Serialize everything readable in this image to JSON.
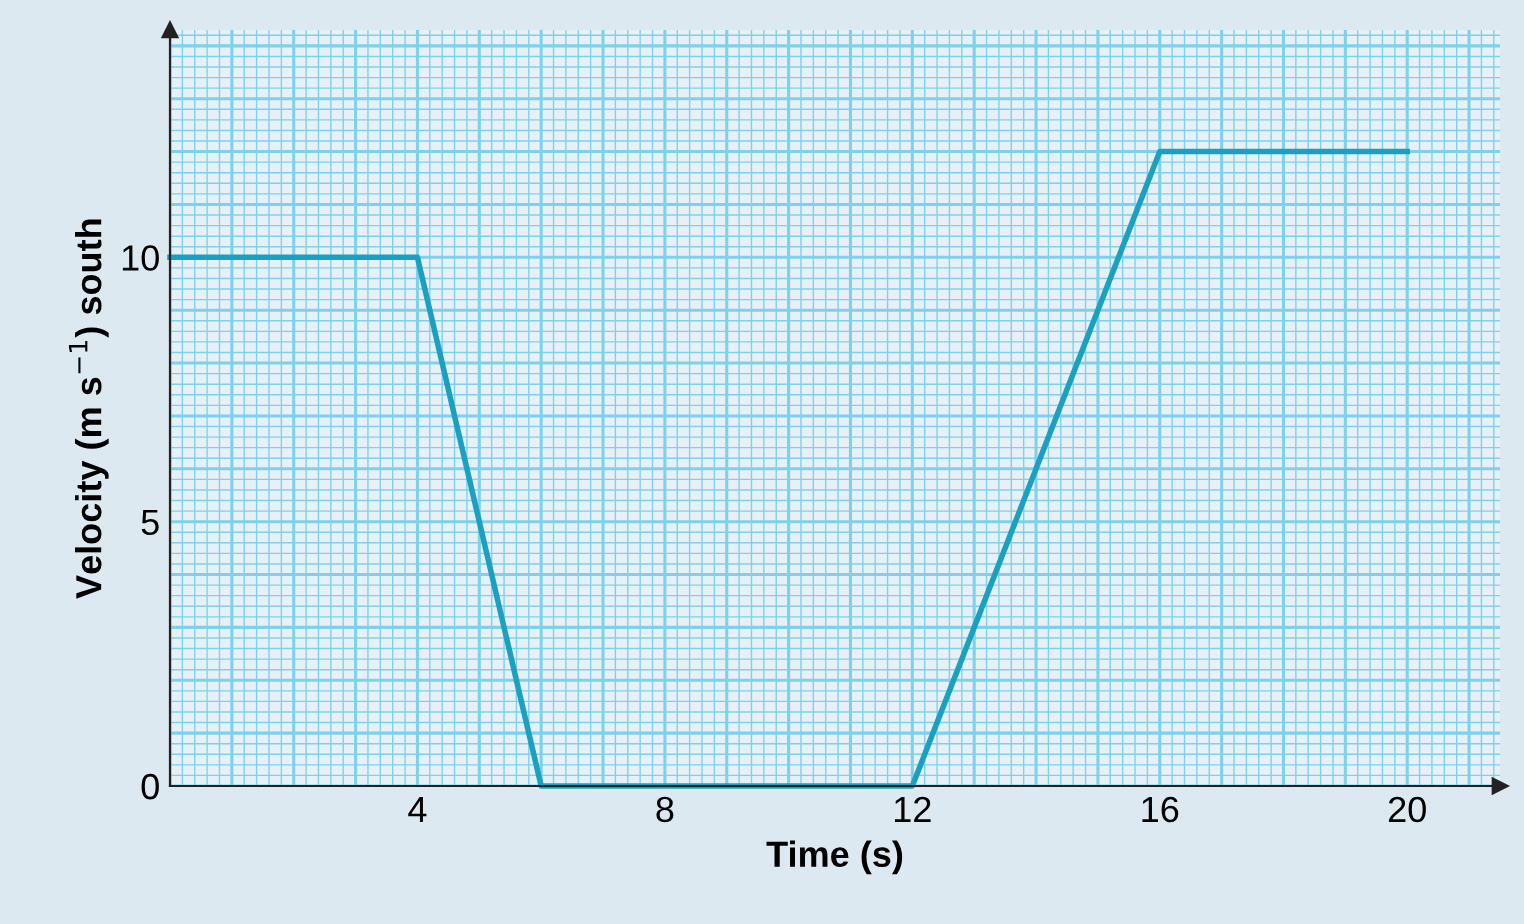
{
  "chart_data": {
    "type": "line",
    "xlabel": "Time (s)",
    "ylabel": "Velocity (m s$^{−1}$) south",
    "x": [
      0,
      4,
      6,
      12,
      16,
      20
    ],
    "series": [
      {
        "color": "#1ba1bf",
        "values": [
          10,
          10,
          0,
          0,
          12,
          12
        ]
      }
    ],
    "xlim": [
      0,
      21.5
    ],
    "ylim": [
      0,
      14.3
    ],
    "xticks": [
      {
        "value": 0,
        "label": null
      },
      {
        "value": 0.2,
        "label": null
      },
      {
        "value": 0.4,
        "label": null
      },
      {
        "value": 0.6,
        "label": null
      },
      {
        "value": 0.8,
        "label": null
      },
      {
        "value": 1,
        "label": null
      },
      {
        "value": 1.2,
        "label": null
      },
      {
        "value": 1.4,
        "label": null
      },
      {
        "value": 1.6,
        "label": null
      },
      {
        "value": 1.8,
        "label": null
      },
      {
        "value": 2,
        "label": null
      },
      {
        "value": 2.2,
        "label": null
      },
      {
        "value": 2.4,
        "label": null
      },
      {
        "value": 2.6,
        "label": null
      },
      {
        "value": 2.8,
        "label": null
      },
      {
        "value": 3,
        "label": null
      },
      {
        "value": 3.2,
        "label": null
      },
      {
        "value": 3.4,
        "label": null
      },
      {
        "value": 3.6,
        "label": null
      },
      {
        "value": 3.8,
        "label": null
      },
      4,
      {
        "value": 4.2,
        "label": null
      },
      {
        "value": 4.4,
        "label": null
      },
      {
        "value": 4.6,
        "label": null
      },
      {
        "value": 4.8,
        "label": null
      },
      {
        "value": 5,
        "label": null
      },
      {
        "value": 5.2,
        "label": null
      },
      {
        "value": 5.4,
        "label": null
      },
      {
        "value": 5.6,
        "label": null
      },
      {
        "value": 5.8,
        "label": null
      },
      {
        "value": 6,
        "label": null
      },
      {
        "value": 6.2,
        "label": null
      },
      {
        "value": 6.4,
        "label": null
      },
      {
        "value": 6.6,
        "label": null
      },
      {
        "value": 6.8,
        "label": null
      },
      {
        "value": 7,
        "label": null
      },
      {
        "value": 7.2,
        "label": null
      },
      {
        "value": 7.4,
        "label": null
      },
      {
        "value": 7.6,
        "label": null
      },
      {
        "value": 7.8,
        "label": null
      },
      8,
      {
        "value": 8.2,
        "label": null
      },
      {
        "value": 8.4,
        "label": null
      },
      {
        "value": 8.6,
        "label": null
      },
      {
        "value": 8.8,
        "label": null
      },
      {
        "value": 9,
        "label": null
      },
      {
        "value": 9.2,
        "label": null
      },
      {
        "value": 9.4,
        "label": null
      },
      {
        "value": 9.6,
        "label": null
      },
      {
        "value": 9.8,
        "label": null
      },
      {
        "value": 10,
        "label": null
      },
      {
        "value": 10.2,
        "label": null
      },
      {
        "value": 10.4,
        "label": null
      },
      {
        "value": 10.6,
        "label": null
      },
      {
        "value": 10.8,
        "label": null
      },
      {
        "value": 11,
        "label": null
      },
      {
        "value": 11.2,
        "label": null
      },
      {
        "value": 11.4,
        "label": null
      },
      {
        "value": 11.6,
        "label": null
      },
      {
        "value": 11.8,
        "label": null
      },
      12,
      {
        "value": 12.2,
        "label": null
      },
      {
        "value": 12.4,
        "label": null
      },
      {
        "value": 12.6,
        "label": null
      },
      {
        "value": 12.8,
        "label": null
      },
      {
        "value": 13,
        "label": null
      },
      {
        "value": 13.2,
        "label": null
      },
      {
        "value": 13.4,
        "label": null
      },
      {
        "value": 13.6,
        "label": null
      },
      {
        "value": 13.8,
        "label": null
      },
      {
        "value": 14,
        "label": null
      },
      {
        "value": 14.2,
        "label": null
      },
      {
        "value": 14.4,
        "label": null
      },
      {
        "value": 14.6,
        "label": null
      },
      {
        "value": 14.8,
        "label": null
      },
      {
        "value": 15,
        "label": null
      },
      {
        "value": 15.2,
        "label": null
      },
      {
        "value": 15.4,
        "label": null
      },
      {
        "value": 15.6,
        "label": null
      },
      {
        "value": 15.8,
        "label": null
      },
      16,
      {
        "value": 16.2,
        "label": null
      },
      {
        "value": 16.4,
        "label": null
      },
      {
        "value": 16.6,
        "label": null
      },
      {
        "value": 16.8,
        "label": null
      },
      {
        "value": 17,
        "label": null
      },
      {
        "value": 17.2,
        "label": null
      },
      {
        "value": 17.4,
        "label": null
      },
      {
        "value": 17.6,
        "label": null
      },
      {
        "value": 17.8,
        "label": null
      },
      {
        "value": 18,
        "label": null
      },
      {
        "value": 18.2,
        "label": null
      },
      {
        "value": 18.4,
        "label": null
      },
      {
        "value": 18.6,
        "label": null
      },
      {
        "value": 18.8,
        "label": null
      },
      {
        "value": 19,
        "label": null
      },
      {
        "value": 19.2,
        "label": null
      },
      {
        "value": 19.4,
        "label": null
      },
      {
        "value": 19.6,
        "label": null
      },
      {
        "value": 19.8,
        "label": null
      },
      20,
      {
        "value": 20.2,
        "label": null
      },
      {
        "value": 20.4,
        "label": null
      },
      {
        "value": 20.6,
        "label": null
      },
      {
        "value": 20.8,
        "label": null
      },
      {
        "value": 21,
        "label": null
      },
      {
        "value": 21.2,
        "label": null
      },
      {
        "value": 21.4,
        "label": null
      }
    ],
    "yticks": [
      0,
      {
        "value": 0.2,
        "label": null
      },
      {
        "value": 0.4,
        "label": null
      },
      {
        "value": 0.6,
        "label": null
      },
      {
        "value": 0.8,
        "label": null
      },
      {
        "value": 1,
        "label": null
      },
      {
        "value": 1.2,
        "label": null
      },
      {
        "value": 1.4,
        "label": null
      },
      {
        "value": 1.6,
        "label": null
      },
      {
        "value": 1.8,
        "label": null
      },
      {
        "value": 2,
        "label": null
      },
      {
        "value": 2.2,
        "label": null
      },
      {
        "value": 2.4,
        "label": null
      },
      {
        "value": 2.6,
        "label": null
      },
      {
        "value": 2.8,
        "label": null
      },
      {
        "value": 3,
        "label": null
      },
      {
        "value": 3.2,
        "label": null
      },
      {
        "value": 3.4,
        "label": null
      },
      {
        "value": 3.6,
        "label": null
      },
      {
        "value": 3.8,
        "label": null
      },
      {
        "value": 4,
        "label": null
      },
      {
        "value": 4.2,
        "label": null
      },
      {
        "value": 4.4,
        "label": null
      },
      {
        "value": 4.6,
        "label": null
      },
      {
        "value": 4.8,
        "label": null
      },
      5,
      {
        "value": 5.2,
        "label": null
      },
      {
        "value": 5.4,
        "label": null
      },
      {
        "value": 5.6,
        "label": null
      },
      {
        "value": 5.8,
        "label": null
      },
      {
        "value": 6,
        "label": null
      },
      {
        "value": 6.2,
        "label": null
      },
      {
        "value": 6.4,
        "label": null
      },
      {
        "value": 6.6,
        "label": null
      },
      {
        "value": 6.8,
        "label": null
      },
      {
        "value": 7,
        "label": null
      },
      {
        "value": 7.2,
        "label": null
      },
      {
        "value": 7.4,
        "label": null
      },
      {
        "value": 7.6,
        "label": null
      },
      {
        "value": 7.8,
        "label": null
      },
      {
        "value": 8,
        "label": null
      },
      {
        "value": 8.2,
        "label": null
      },
      {
        "value": 8.4,
        "label": null
      },
      {
        "value": 8.6,
        "label": null
      },
      {
        "value": 8.8,
        "label": null
      },
      {
        "value": 9,
        "label": null
      },
      {
        "value": 9.2,
        "label": null
      },
      {
        "value": 9.4,
        "label": null
      },
      {
        "value": 9.6,
        "label": null
      },
      {
        "value": 9.8,
        "label": null
      },
      10,
      {
        "value": 10.2,
        "label": null
      },
      {
        "value": 10.4,
        "label": null
      },
      {
        "value": 10.6,
        "label": null
      },
      {
        "value": 10.8,
        "label": null
      },
      {
        "value": 11,
        "label": null
      },
      {
        "value": 11.2,
        "label": null
      },
      {
        "value": 11.4,
        "label": null
      },
      {
        "value": 11.6,
        "label": null
      },
      {
        "value": 11.8,
        "label": null
      },
      {
        "value": 12,
        "label": null
      },
      {
        "value": 12.2,
        "label": null
      },
      {
        "value": 12.4,
        "label": null
      },
      {
        "value": 12.6,
        "label": null
      },
      {
        "value": 12.8,
        "label": null
      },
      {
        "value": 13,
        "label": null
      },
      {
        "value": 13.2,
        "label": null
      },
      {
        "value": 13.4,
        "label": null
      },
      {
        "value": 13.6,
        "label": null
      },
      {
        "value": 13.8,
        "label": null
      },
      {
        "value": 14,
        "label": null
      },
      {
        "value": 14.2,
        "label": null
      }
    ],
    "grid": true,
    "marker": "none",
    "line_style": "solid"
  }
}
